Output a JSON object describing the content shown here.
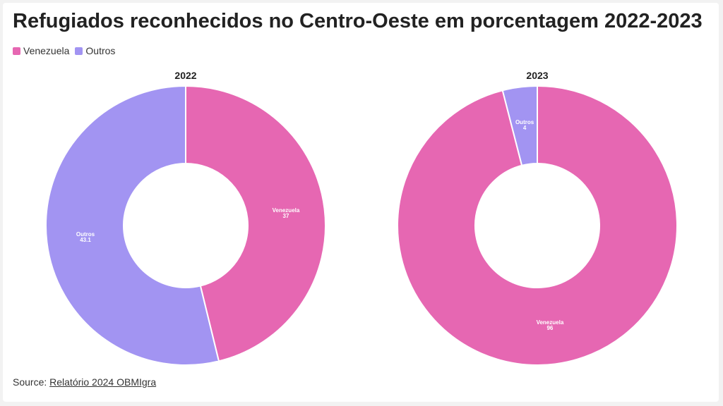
{
  "title": "Refugiados reconhecidos no Centro-Oeste em porcentagem 2022-2023",
  "legend": [
    {
      "label": "Venezuela",
      "color": "#e667b2"
    },
    {
      "label": "Outros",
      "color": "#a294f2"
    }
  ],
  "source": {
    "prefix": "Source:",
    "link_text": "Relatório 2024 OBMIgra"
  },
  "chart_data": [
    {
      "type": "pie",
      "title": "2022",
      "slices": [
        {
          "label": "Venezuela",
          "value": 37,
          "color": "#e667b2"
        },
        {
          "label": "Outros",
          "value": 43.1,
          "color": "#a294f2"
        }
      ]
    },
    {
      "type": "pie",
      "title": "2023",
      "slices": [
        {
          "label": "Venezuela",
          "value": 96,
          "color": "#e667b2"
        },
        {
          "label": "Outros",
          "value": 4,
          "color": "#a294f2"
        }
      ]
    }
  ]
}
